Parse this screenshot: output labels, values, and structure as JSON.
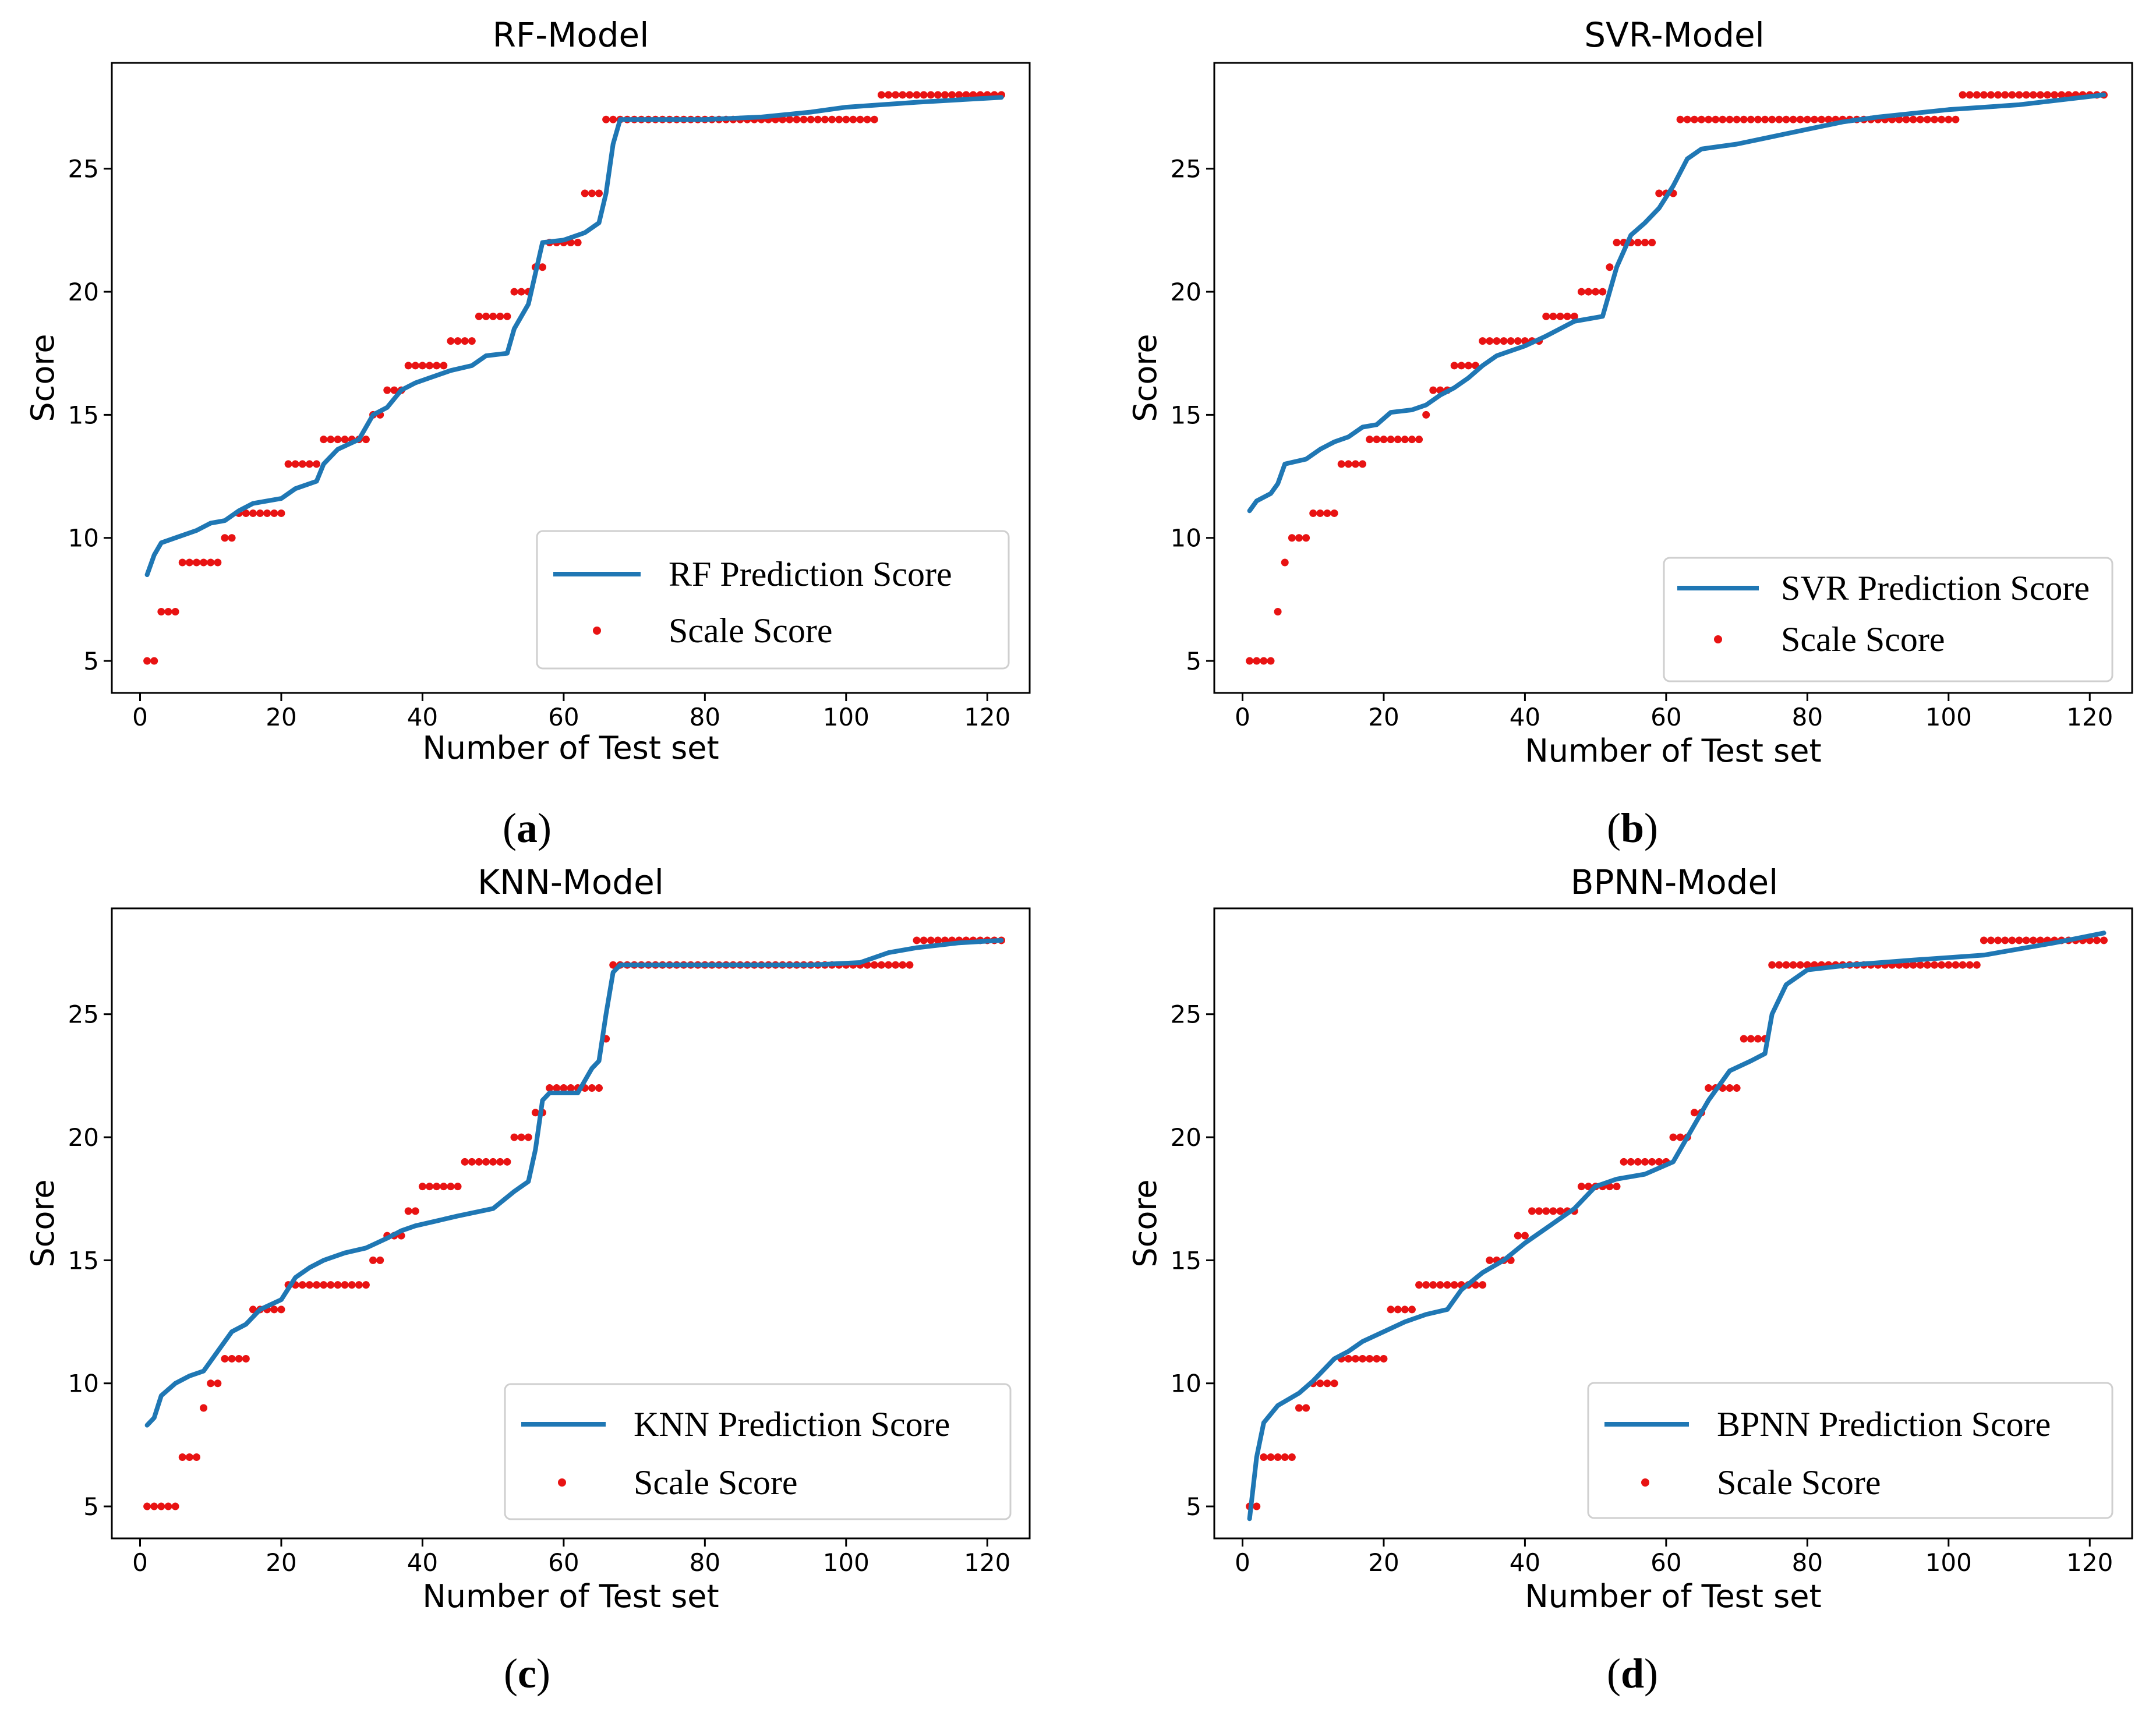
{
  "chart_data": [
    {
      "type": "line",
      "id": "a",
      "caption_letter": "a",
      "title": "RF-Model",
      "xlabel": "Number of Test set",
      "ylabel": "Score",
      "xlim": [
        -4,
        126
      ],
      "ylim": [
        3.7,
        29.3
      ],
      "xticks": [
        0,
        20,
        40,
        60,
        80,
        100,
        120
      ],
      "yticks": [
        5,
        10,
        15,
        20,
        25
      ],
      "legend_position": "lower-right",
      "series": [
        {
          "name": "RF Prediction Score",
          "style": "line",
          "color": "#1f77b4",
          "points": [
            [
              1,
              8.5
            ],
            [
              2,
              9.3
            ],
            [
              3,
              9.8
            ],
            [
              5,
              10.0
            ],
            [
              8,
              10.3
            ],
            [
              10,
              10.6
            ],
            [
              12,
              10.7
            ],
            [
              14,
              11.1
            ],
            [
              16,
              11.4
            ],
            [
              20,
              11.6
            ],
            [
              22,
              12.0
            ],
            [
              25,
              12.3
            ],
            [
              26,
              13.0
            ],
            [
              28,
              13.6
            ],
            [
              31,
              14.0
            ],
            [
              33,
              15.0
            ],
            [
              35,
              15.3
            ],
            [
              37,
              16.0
            ],
            [
              39,
              16.3
            ],
            [
              41,
              16.5
            ],
            [
              44,
              16.8
            ],
            [
              47,
              17.0
            ],
            [
              49,
              17.4
            ],
            [
              52,
              17.5
            ],
            [
              53,
              18.5
            ],
            [
              55,
              19.5
            ],
            [
              57,
              22.0
            ],
            [
              60,
              22.1
            ],
            [
              63,
              22.4
            ],
            [
              65,
              22.8
            ],
            [
              66,
              24.0
            ],
            [
              67,
              26.0
            ],
            [
              68,
              27.0
            ],
            [
              80,
              27.0
            ],
            [
              88,
              27.1
            ],
            [
              95,
              27.3
            ],
            [
              100,
              27.5
            ],
            [
              110,
              27.7
            ],
            [
              122,
              27.9
            ]
          ]
        },
        {
          "name": "Scale Score",
          "style": "markers",
          "color": "#e81313",
          "runs": [
            [
              1,
              2,
              5
            ],
            [
              3,
              5,
              7
            ],
            [
              6,
              11,
              9
            ],
            [
              12,
              13,
              10
            ],
            [
              14,
              20,
              11
            ],
            [
              21,
              25,
              13
            ],
            [
              26,
              32,
              14
            ],
            [
              33,
              34,
              15
            ],
            [
              35,
              37,
              16
            ],
            [
              38,
              43,
              17
            ],
            [
              44,
              47,
              18
            ],
            [
              48,
              52,
              19
            ],
            [
              53,
              55,
              20
            ],
            [
              56,
              57,
              21
            ],
            [
              58,
              62,
              22
            ],
            [
              63,
              65,
              24
            ],
            [
              66,
              104,
              27
            ],
            [
              105,
              122,
              28
            ]
          ]
        }
      ]
    },
    {
      "type": "line",
      "id": "b",
      "caption_letter": "b",
      "title": "SVR-Model",
      "xlabel": "Number of Test set",
      "ylabel": "Score",
      "xlim": [
        -4,
        126
      ],
      "ylim": [
        3.7,
        29.3
      ],
      "xticks": [
        0,
        20,
        40,
        60,
        80,
        100,
        120
      ],
      "yticks": [
        5,
        10,
        15,
        20,
        25
      ],
      "legend_position": "lower-right",
      "series": [
        {
          "name": "SVR Prediction Score",
          "style": "line",
          "color": "#1f77b4",
          "points": [
            [
              1,
              11.1
            ],
            [
              2,
              11.5
            ],
            [
              4,
              11.8
            ],
            [
              5,
              12.2
            ],
            [
              6,
              13.0
            ],
            [
              9,
              13.2
            ],
            [
              11,
              13.6
            ],
            [
              13,
              13.9
            ],
            [
              15,
              14.1
            ],
            [
              17,
              14.5
            ],
            [
              19,
              14.6
            ],
            [
              21,
              15.1
            ],
            [
              24,
              15.2
            ],
            [
              26,
              15.4
            ],
            [
              28,
              15.8
            ],
            [
              30,
              16.1
            ],
            [
              32,
              16.5
            ],
            [
              34,
              17.0
            ],
            [
              36,
              17.4
            ],
            [
              38,
              17.6
            ],
            [
              40,
              17.8
            ],
            [
              43,
              18.2
            ],
            [
              45,
              18.5
            ],
            [
              47,
              18.8
            ],
            [
              51,
              19.0
            ],
            [
              53,
              21.0
            ],
            [
              55,
              22.3
            ],
            [
              57,
              22.8
            ],
            [
              59,
              23.4
            ],
            [
              61,
              24.3
            ],
            [
              63,
              25.4
            ],
            [
              65,
              25.8
            ],
            [
              70,
              26.0
            ],
            [
              75,
              26.3
            ],
            [
              80,
              26.6
            ],
            [
              85,
              26.9
            ],
            [
              90,
              27.1
            ],
            [
              100,
              27.4
            ],
            [
              110,
              27.6
            ],
            [
              122,
              28.0
            ]
          ]
        },
        {
          "name": "Scale Score",
          "style": "markers",
          "color": "#e81313",
          "runs": [
            [
              1,
              4,
              5
            ],
            [
              5,
              5,
              7
            ],
            [
              6,
              6,
              9
            ],
            [
              7,
              9,
              10
            ],
            [
              10,
              13,
              11
            ],
            [
              14,
              17,
              13
            ],
            [
              18,
              25,
              14
            ],
            [
              26,
              26,
              15
            ],
            [
              27,
              29,
              16
            ],
            [
              30,
              33,
              17
            ],
            [
              34,
              42,
              18
            ],
            [
              43,
              47,
              19
            ],
            [
              48,
              51,
              20
            ],
            [
              52,
              52,
              21
            ],
            [
              53,
              58,
              22
            ],
            [
              59,
              61,
              24
            ],
            [
              62,
              101,
              27
            ],
            [
              102,
              122,
              28
            ]
          ]
        }
      ]
    },
    {
      "type": "line",
      "id": "c",
      "caption_letter": "c",
      "title": "KNN-Model",
      "xlabel": "Number of Test set",
      "ylabel": "Score",
      "xlim": [
        -4,
        126
      ],
      "ylim": [
        3.7,
        29.3
      ],
      "xticks": [
        0,
        20,
        40,
        60,
        80,
        100,
        120
      ],
      "yticks": [
        5,
        10,
        15,
        20,
        25
      ],
      "legend_position": "lower-right",
      "series": [
        {
          "name": "KNN Prediction Score",
          "style": "line",
          "color": "#1f77b4",
          "points": [
            [
              1,
              8.3
            ],
            [
              2,
              8.6
            ],
            [
              3,
              9.5
            ],
            [
              5,
              10.0
            ],
            [
              7,
              10.3
            ],
            [
              9,
              10.5
            ],
            [
              11,
              11.3
            ],
            [
              13,
              12.1
            ],
            [
              15,
              12.4
            ],
            [
              17,
              13.0
            ],
            [
              20,
              13.4
            ],
            [
              22,
              14.3
            ],
            [
              24,
              14.7
            ],
            [
              26,
              15.0
            ],
            [
              29,
              15.3
            ],
            [
              32,
              15.5
            ],
            [
              35,
              15.9
            ],
            [
              37,
              16.2
            ],
            [
              39,
              16.4
            ],
            [
              42,
              16.6
            ],
            [
              45,
              16.8
            ],
            [
              50,
              17.1
            ],
            [
              53,
              17.8
            ],
            [
              55,
              18.2
            ],
            [
              56,
              19.5
            ],
            [
              57,
              21.5
            ],
            [
              58,
              21.8
            ],
            [
              62,
              21.8
            ],
            [
              64,
              22.8
            ],
            [
              65,
              23.1
            ],
            [
              66,
              25.0
            ],
            [
              67,
              26.7
            ],
            [
              68,
              27.0
            ],
            [
              80,
              27.0
            ],
            [
              95,
              27.0
            ],
            [
              102,
              27.1
            ],
            [
              106,
              27.5
            ],
            [
              110,
              27.7
            ],
            [
              116,
              27.9
            ],
            [
              122,
              28.0
            ]
          ]
        },
        {
          "name": "Scale Score",
          "style": "markers",
          "color": "#e81313",
          "runs": [
            [
              1,
              5,
              5
            ],
            [
              6,
              8,
              7
            ],
            [
              9,
              9,
              9
            ],
            [
              10,
              11,
              10
            ],
            [
              12,
              15,
              11
            ],
            [
              16,
              20,
              13
            ],
            [
              21,
              32,
              14
            ],
            [
              33,
              34,
              15
            ],
            [
              35,
              37,
              16
            ],
            [
              38,
              39,
              17
            ],
            [
              40,
              45,
              18
            ],
            [
              46,
              52,
              19
            ],
            [
              53,
              55,
              20
            ],
            [
              56,
              57,
              21
            ],
            [
              58,
              65,
              22
            ],
            [
              66,
              66,
              24
            ],
            [
              67,
              109,
              27
            ],
            [
              110,
              122,
              28
            ]
          ]
        }
      ]
    },
    {
      "type": "line",
      "id": "d",
      "caption_letter": "d",
      "title": "BPNN-Model",
      "xlabel": "Number of Test set",
      "ylabel": "Score",
      "xlim": [
        -4,
        126
      ],
      "ylim": [
        3.7,
        29.3
      ],
      "xticks": [
        0,
        20,
        40,
        60,
        80,
        100,
        120
      ],
      "yticks": [
        5,
        10,
        15,
        20,
        25
      ],
      "legend_position": "lower-right",
      "series": [
        {
          "name": "BPNN Prediction Score",
          "style": "line",
          "color": "#1f77b4",
          "points": [
            [
              1,
              4.5
            ],
            [
              2,
              7.0
            ],
            [
              3,
              8.4
            ],
            [
              5,
              9.1
            ],
            [
              8,
              9.6
            ],
            [
              10,
              10.1
            ],
            [
              13,
              11.0
            ],
            [
              15,
              11.3
            ],
            [
              17,
              11.7
            ],
            [
              20,
              12.1
            ],
            [
              23,
              12.5
            ],
            [
              26,
              12.8
            ],
            [
              29,
              13.0
            ],
            [
              31,
              13.8
            ],
            [
              34,
              14.5
            ],
            [
              37,
              15.0
            ],
            [
              40,
              15.7
            ],
            [
              44,
              16.5
            ],
            [
              47,
              17.1
            ],
            [
              50,
              18.0
            ],
            [
              53,
              18.3
            ],
            [
              57,
              18.5
            ],
            [
              61,
              19.0
            ],
            [
              63,
              20.0
            ],
            [
              66,
              21.5
            ],
            [
              69,
              22.7
            ],
            [
              72,
              23.1
            ],
            [
              74,
              23.4
            ],
            [
              75,
              25.0
            ],
            [
              77,
              26.2
            ],
            [
              80,
              26.8
            ],
            [
              86,
              27.0
            ],
            [
              95,
              27.2
            ],
            [
              105,
              27.4
            ],
            [
              115,
              27.9
            ],
            [
              122,
              28.3
            ]
          ]
        },
        {
          "name": "Scale Score",
          "style": "markers",
          "color": "#e81313",
          "runs": [
            [
              1,
              2,
              5
            ],
            [
              3,
              7,
              7
            ],
            [
              8,
              9,
              9
            ],
            [
              10,
              13,
              10
            ],
            [
              14,
              20,
              11
            ],
            [
              21,
              24,
              13
            ],
            [
              25,
              34,
              14
            ],
            [
              35,
              38,
              15
            ],
            [
              39,
              40,
              16
            ],
            [
              41,
              47,
              17
            ],
            [
              48,
              53,
              18
            ],
            [
              54,
              60,
              19
            ],
            [
              61,
              63,
              20
            ],
            [
              64,
              65,
              21
            ],
            [
              66,
              70,
              22
            ],
            [
              71,
              74,
              24
            ],
            [
              75,
              104,
              27
            ],
            [
              105,
              122,
              28
            ]
          ]
        }
      ]
    }
  ]
}
